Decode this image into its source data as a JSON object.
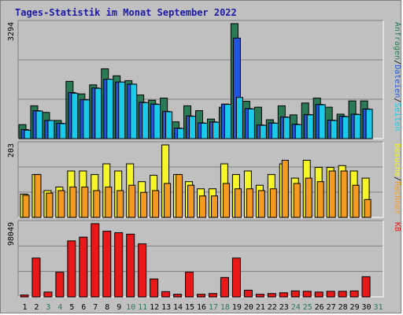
{
  "title": "Tages-Statistik im Monat September 2022",
  "colors": {
    "background": "#c0c0c0",
    "title": "#1a1aa6",
    "anfragen": "#2a7a55",
    "dateien": "#2255dd",
    "seiten": "#1bc9e8",
    "besuche": "#f5f52a",
    "rechner": "#f59a20",
    "kb": "#e81818",
    "weekend_label": "#2a7a55",
    "weekday_label": "#000000"
  },
  "chart_data": [
    {
      "type": "bar",
      "name": "requests-panel",
      "ymax_label": "3294",
      "ymax": 3294,
      "right_labels": [
        {
          "text": "Anfragen",
          "color_key": "anfragen"
        },
        {
          "text": "/",
          "color_key": "weekday_label"
        },
        {
          "text": "Dateien",
          "color_key": "dateien"
        },
        {
          "text": "/",
          "color_key": "weekday_label"
        },
        {
          "text": "Seiten",
          "color_key": "seiten"
        }
      ],
      "series": [
        {
          "name": "Anfragen",
          "color_key": "anfragen",
          "values": [
            400,
            940,
            750,
            520,
            1640,
            1280,
            1540,
            2000,
            1800,
            1660,
            1250,
            1100,
            1160,
            480,
            940,
            800,
            560,
            900,
            3294,
            1070,
            900,
            540,
            940,
            680,
            1020,
            1160,
            900,
            700,
            1080,
            1080
          ]
        },
        {
          "name": "Dateien",
          "color_key": "dateien",
          "values": [
            260,
            800,
            520,
            440,
            1320,
            1120,
            1450,
            1700,
            1620,
            1560,
            1040,
            990,
            780,
            300,
            650,
            450,
            480,
            990,
            2880,
            860,
            390,
            450,
            620,
            410,
            690,
            980,
            530,
            640,
            700,
            850
          ]
        },
        {
          "name": "Seiten",
          "color_key": "seiten",
          "values": [
            240,
            790,
            520,
            430,
            1300,
            1110,
            1440,
            1700,
            1620,
            1560,
            1030,
            980,
            770,
            290,
            640,
            440,
            470,
            980,
            1180,
            850,
            380,
            440,
            610,
            400,
            680,
            970,
            520,
            630,
            690,
            840
          ]
        }
      ]
    },
    {
      "type": "bar",
      "name": "visits-panel",
      "ymax_label": "203",
      "ymax": 203,
      "right_labels": [
        {
          "text": "Besuche",
          "color_key": "besuche"
        },
        {
          "text": "/",
          "color_key": "weekday_label"
        },
        {
          "text": "Rechner",
          "color_key": "rechner"
        }
      ],
      "series": [
        {
          "name": "Besuche",
          "color_key": "besuche",
          "values": [
            65,
            120,
            75,
            85,
            130,
            130,
            120,
            150,
            130,
            150,
            100,
            118,
            203,
            120,
            100,
            80,
            80,
            150,
            120,
            130,
            90,
            120,
            150,
            110,
            160,
            140,
            140,
            145,
            130,
            110
          ]
        },
        {
          "name": "Rechner",
          "color_key": "rechner",
          "values": [
            62,
            120,
            68,
            75,
            85,
            85,
            75,
            85,
            75,
            90,
            70,
            75,
            95,
            120,
            90,
            60,
            60,
            95,
            80,
            80,
            75,
            80,
            160,
            95,
            110,
            100,
            130,
            130,
            90,
            50
          ]
        }
      ]
    },
    {
      "type": "bar",
      "name": "kb-panel",
      "ymax_label": "98049",
      "ymax": 98049,
      "right_labels": [
        {
          "text": "KB",
          "color_key": "kb"
        }
      ],
      "series": [
        {
          "name": "KB",
          "color_key": "kb",
          "values": [
            2500,
            52000,
            6500,
            33000,
            75000,
            80000,
            98049,
            88000,
            86000,
            84000,
            71000,
            24000,
            7000,
            3500,
            33000,
            3500,
            4500,
            26000,
            52000,
            9000,
            3500,
            4500,
            5500,
            8000,
            7500,
            6500,
            7500,
            7500,
            8000,
            27000
          ]
        }
      ]
    }
  ],
  "x_labels": [
    "1",
    "2",
    "3",
    "4",
    "5",
    "6",
    "7",
    "8",
    "9",
    "10",
    "11",
    "12",
    "13",
    "14",
    "15",
    "16",
    "17",
    "18",
    "19",
    "20",
    "21",
    "22",
    "23",
    "24",
    "25",
    "26",
    "27",
    "28",
    "29",
    "30",
    "31"
  ],
  "weekend_days": [
    3,
    4,
    10,
    11,
    17,
    18,
    24,
    25,
    31
  ]
}
